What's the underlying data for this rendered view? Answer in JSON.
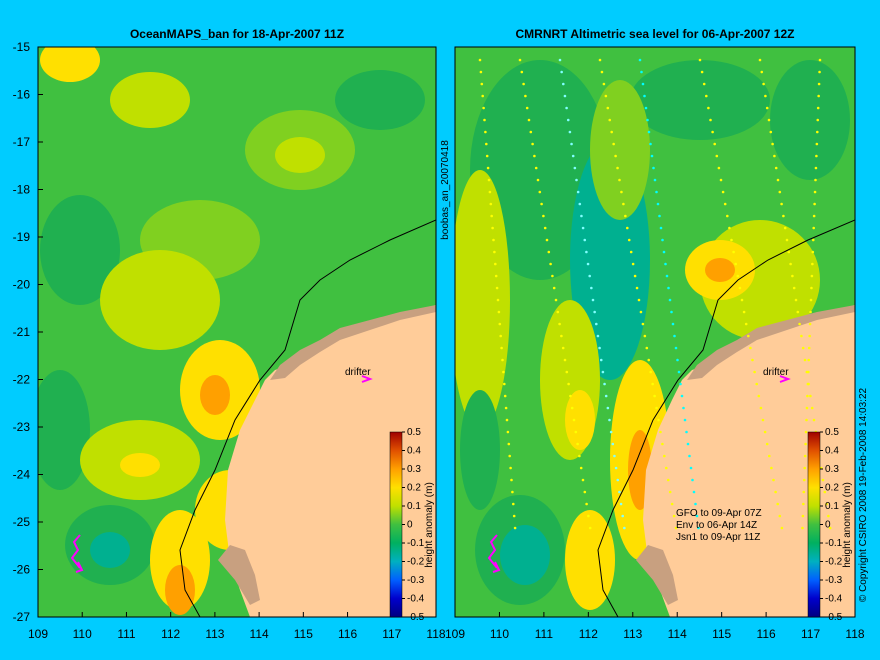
{
  "panels": [
    {
      "id": "left",
      "title": "OceanMAPS_ban for 18-Apr-2007 11Z",
      "drifter_label": "drifter"
    },
    {
      "id": "right",
      "title": "CMRNRT Altimetric sea level  for 06-Apr-2007 12Z",
      "drifter_label": "drifter",
      "annotations": [
        "GFO to 09-Apr 07Z",
        "Env to 06-Apr 14Z",
        "Jsn1 to 09-Apr 11Z"
      ]
    }
  ],
  "axes": {
    "x_ticks": [
      "109",
      "110",
      "111",
      "112",
      "113",
      "114",
      "115",
      "116",
      "117",
      "118"
    ],
    "y_ticks": [
      "-15",
      "-16",
      "-17",
      "-18",
      "-19",
      "-20",
      "-21",
      "-22",
      "-23",
      "-24",
      "-25",
      "-26",
      "-27"
    ],
    "x_range": [
      109,
      118
    ],
    "y_range": [
      -27,
      -15
    ]
  },
  "colorbar": {
    "label": "height anomaly (m)",
    "ticks": [
      "0.5",
      "0.4",
      "0.3",
      "0.2",
      "0.1",
      "0",
      "-0.1",
      "-0.2",
      "-0.3",
      "-0.4",
      "-0.5"
    ],
    "range": [
      -0.5,
      0.5
    ]
  },
  "side_labels": {
    "middle": "boobas_an_20070418",
    "right": "© Copyright CSIRO 2008   19-Feb-2008 14:03:22"
  },
  "colors": {
    "background": "#00ccff",
    "land": "#ffcc99",
    "shelf": "#c8a080",
    "drifter": "#ff00ff"
  }
}
